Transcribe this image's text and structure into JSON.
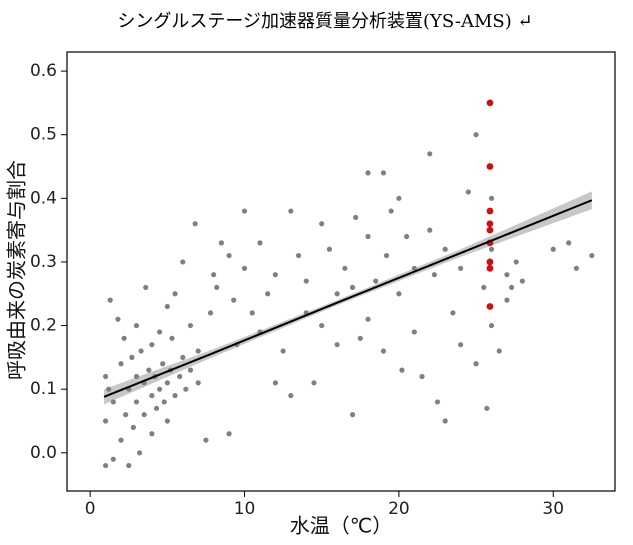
{
  "chart_data": {
    "type": "scatter",
    "title": "シングルステージ加速器質量分析装置(YS-AMS) ↵",
    "x_label": "水温（℃）",
    "y_label": "呼吸由来の炭素寄与割合",
    "xlim": [
      -1.5,
      34
    ],
    "ylim": [
      -0.06,
      0.63
    ],
    "xticks": [
      0,
      10,
      20,
      30
    ],
    "yticks": [
      {
        "value": 0,
        "label": "0.0"
      },
      {
        "value": 0.1,
        "label": "0.1"
      },
      {
        "value": 0.2,
        "label": "0.2"
      },
      {
        "value": 0.3,
        "label": "0.3"
      },
      {
        "value": 0.4,
        "label": "0.4"
      },
      {
        "value": 0.5,
        "label": "0.5"
      },
      {
        "value": 0.6,
        "label": "0.6"
      }
    ],
    "series": [
      {
        "color": "#808080",
        "x": [
          1,
          1,
          1,
          1.2,
          1.3,
          1.5,
          1.5,
          1.8,
          2,
          2,
          2.2,
          2.3,
          2.5,
          2.5,
          2.7,
          2.8,
          3,
          3,
          3,
          3.2,
          3.3,
          3.5,
          3.5,
          3.6,
          3.8,
          4,
          4,
          4,
          4.2,
          4.3,
          4.5,
          4.5,
          4.7,
          4.8,
          5,
          5,
          5,
          5.2,
          5.3,
          5.5,
          5.5,
          5.8,
          6,
          6,
          6.2,
          6.5,
          6.5,
          6.8,
          7,
          7,
          7.5,
          7.8,
          8,
          8.2,
          8.5,
          9,
          9,
          9.3,
          9.5,
          10,
          10,
          10.5,
          11,
          11,
          11.5,
          12,
          12,
          12.5,
          13,
          13,
          13.5,
          14,
          14,
          14.5,
          15,
          15,
          15.5,
          16,
          16,
          16.5,
          17,
          17,
          17.2,
          17.5,
          18,
          18,
          18,
          18.5,
          19,
          19,
          19.2,
          19.5,
          20,
          20,
          20.2,
          20.5,
          21,
          21,
          21.5,
          22,
          22,
          22.3,
          22.5,
          23,
          23,
          23.5,
          24,
          24,
          24.5,
          25,
          25,
          25.5,
          25.7,
          26,
          26,
          26,
          26.5,
          27,
          27,
          27.3,
          27.6,
          28,
          30,
          31,
          31.5,
          32.5
        ],
        "values": [
          0.12,
          -0.02,
          0.05,
          0.1,
          0.24,
          0.08,
          -0.01,
          0.21,
          0.14,
          0.02,
          0.18,
          0.06,
          0.1,
          -0.02,
          0.15,
          0.04,
          0.12,
          0.08,
          0.2,
          0.0,
          0.16,
          0.11,
          0.06,
          0.26,
          0.13,
          0.09,
          0.17,
          0.03,
          0.12,
          0.07,
          0.1,
          0.19,
          0.14,
          0.08,
          0.11,
          0.23,
          0.05,
          0.13,
          0.18,
          0.09,
          0.25,
          0.12,
          0.15,
          0.3,
          0.1,
          0.2,
          0.13,
          0.36,
          0.16,
          0.11,
          0.02,
          0.22,
          0.28,
          0.26,
          0.33,
          0.03,
          0.31,
          0.24,
          0.17,
          0.38,
          0.29,
          0.22,
          0.19,
          0.33,
          0.25,
          0.11,
          0.28,
          0.16,
          0.38,
          0.09,
          0.31,
          0.22,
          0.27,
          0.11,
          0.36,
          0.2,
          0.32,
          0.25,
          0.17,
          0.29,
          0.06,
          0.26,
          0.37,
          0.18,
          0.44,
          0.34,
          0.21,
          0.27,
          0.44,
          0.16,
          0.31,
          0.38,
          0.4,
          0.25,
          0.13,
          0.34,
          0.29,
          0.19,
          0.12,
          0.47,
          0.35,
          0.28,
          0.08,
          0.32,
          0.05,
          0.22,
          0.29,
          0.17,
          0.41,
          0.5,
          0.14,
          0.26,
          0.07,
          0.32,
          0.2,
          0.4,
          0.16,
          0.28,
          0.24,
          0.26,
          0.3,
          0.27,
          0.32,
          0.33,
          0.29,
          0.31
        ]
      },
      {
        "color": "#cc1111",
        "x": [
          25.9,
          25.9,
          25.9,
          25.9,
          25.9,
          25.9,
          25.9,
          25.9,
          25.9
        ],
        "values": [
          0.55,
          0.45,
          0.38,
          0.36,
          0.35,
          0.33,
          0.3,
          0.29,
          0.23
        ]
      }
    ],
    "fit": {
      "color": "#000000",
      "band_color": "#c8c8c8",
      "x": [
        0.9,
        8,
        16,
        24,
        32.5
      ],
      "y": [
        0.088,
        0.157,
        0.236,
        0.314,
        0.397
      ],
      "lower": [
        0.076,
        0.151,
        0.232,
        0.308,
        0.383
      ],
      "upper": [
        0.1,
        0.163,
        0.24,
        0.32,
        0.411
      ]
    }
  }
}
